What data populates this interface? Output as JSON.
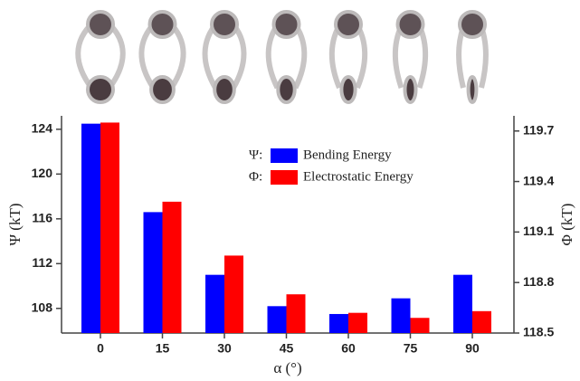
{
  "chart_data": {
    "type": "bar",
    "categories": [
      0,
      15,
      30,
      45,
      60,
      75,
      90
    ],
    "x_label": "α (°)",
    "y_label": "Ψ (kT)",
    "y2_label": "Φ (kT)",
    "series": [
      {
        "name": "Bending Energy",
        "symbol": "Ψ:",
        "color": "#0000ff",
        "values": [
          124.5,
          116.6,
          111.0,
          108.2,
          107.5,
          108.9,
          111.0
        ]
      },
      {
        "name": "Electrostatic Energy",
        "symbol": "Φ:",
        "color": "#ff0000",
        "axis": "y2",
        "values": [
          119.75,
          119.28,
          118.96,
          118.73,
          118.62,
          118.59,
          118.63
        ]
      }
    ],
    "ylim": [
      105.8,
      125.2
    ],
    "yticks": [
      108,
      112,
      116,
      120,
      124
    ],
    "y2lim": [
      118.5,
      119.79
    ],
    "y2ticks": [
      118.5,
      118.8,
      119.1,
      119.4,
      119.7
    ]
  }
}
